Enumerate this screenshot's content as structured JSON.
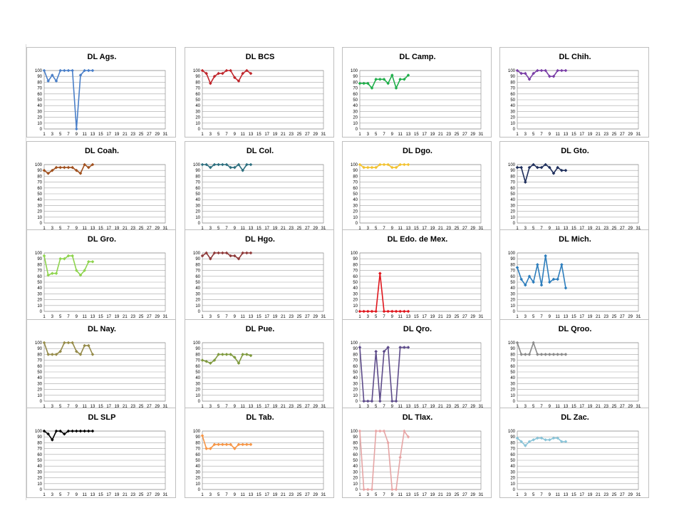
{
  "chart_data": [
    {
      "type": "line",
      "title": "DL Ags.",
      "color": "#4a7fc8",
      "ylim": [
        0,
        100
      ],
      "values": [
        100,
        82,
        92,
        82,
        100,
        100,
        100,
        100,
        0,
        92,
        100,
        100,
        100
      ]
    },
    {
      "type": "line",
      "title": "DL BCS",
      "color": "#c0272d",
      "ylim": [
        0,
        100
      ],
      "values": [
        100,
        95,
        78,
        90,
        95,
        95,
        100,
        100,
        88,
        82,
        95,
        100,
        95
      ]
    },
    {
      "type": "line",
      "title": "DL Camp.",
      "color": "#1fae4a",
      "ylim": [
        0,
        100
      ],
      "values": [
        78,
        78,
        78,
        70,
        85,
        85,
        85,
        78,
        92,
        70,
        85,
        85,
        92
      ]
    },
    {
      "type": "line",
      "title": "DL Chih.",
      "color": "#7a3fa6",
      "ylim": [
        0,
        100
      ],
      "values": [
        100,
        95,
        95,
        85,
        95,
        100,
        100,
        100,
        90,
        90,
        100,
        100,
        100
      ]
    },
    {
      "type": "line",
      "title": "DL Coah.",
      "color": "#a0501e",
      "ylim": [
        0,
        100
      ],
      "values": [
        90,
        85,
        90,
        95,
        95,
        95,
        95,
        95,
        90,
        85,
        100,
        95,
        100
      ]
    },
    {
      "type": "line",
      "title": "DL Col.",
      "color": "#2d6e7e",
      "ylim": [
        0,
        100
      ],
      "values": [
        100,
        100,
        95,
        100,
        100,
        100,
        100,
        95,
        95,
        100,
        90,
        100,
        100
      ]
    },
    {
      "type": "line",
      "title": "DL Dgo.",
      "color": "#f2c230",
      "ylim": [
        0,
        100
      ],
      "values": [
        100,
        95,
        95,
        95,
        95,
        100,
        100,
        100,
        95,
        95,
        100,
        100,
        100
      ]
    },
    {
      "type": "line",
      "title": "DL Gto.",
      "color": "#1f2f5c",
      "ylim": [
        0,
        100
      ],
      "values": [
        95,
        95,
        70,
        95,
        100,
        95,
        95,
        100,
        95,
        85,
        95,
        90,
        90
      ]
    },
    {
      "type": "line",
      "title": "DL Gro.",
      "color": "#8ed44e",
      "ylim": [
        0,
        100
      ],
      "values": [
        95,
        62,
        65,
        65,
        90,
        90,
        95,
        95,
        70,
        62,
        70,
        85,
        85
      ]
    },
    {
      "type": "line",
      "title": "DL Hgo.",
      "color": "#8e3a3a",
      "ylim": [
        0,
        100
      ],
      "values": [
        95,
        100,
        90,
        100,
        100,
        100,
        100,
        95,
        95,
        90,
        100,
        100,
        100
      ]
    },
    {
      "type": "line",
      "title": "DL Edo. de Mex.",
      "color": "#e0161d",
      "ylim": [
        0,
        100
      ],
      "values": [
        0,
        0,
        0,
        0,
        0,
        65,
        0,
        0,
        0,
        0,
        0,
        0,
        0
      ]
    },
    {
      "type": "line",
      "title": "DL Mich.",
      "color": "#2c7dbc",
      "ylim": [
        0,
        100
      ],
      "values": [
        75,
        55,
        45,
        60,
        50,
        80,
        45,
        95,
        50,
        55,
        55,
        80,
        40
      ]
    },
    {
      "type": "line",
      "title": "DL Nay.",
      "color": "#958b4a",
      "ylim": [
        0,
        100
      ],
      "values": [
        100,
        80,
        80,
        80,
        85,
        100,
        100,
        100,
        85,
        80,
        95,
        95,
        80
      ]
    },
    {
      "type": "line",
      "title": "DL Pue.",
      "color": "#7f9a3e",
      "ylim": [
        0,
        100
      ],
      "values": [
        70,
        68,
        65,
        70,
        80,
        80,
        80,
        80,
        75,
        65,
        80,
        80,
        78
      ]
    },
    {
      "type": "line",
      "title": "DL Qro.",
      "color": "#5d4b8a",
      "ylim": [
        0,
        100
      ],
      "values": [
        92,
        0,
        0,
        0,
        85,
        0,
        85,
        92,
        0,
        0,
        92,
        92,
        92
      ]
    },
    {
      "type": "line",
      "title": "DL Qroo.",
      "color": "#8a8a8a",
      "ylim": [
        0,
        100
      ],
      "values": [
        100,
        80,
        80,
        80,
        100,
        80,
        80,
        80,
        80,
        80,
        80,
        80,
        80
      ]
    },
    {
      "type": "line",
      "title": "DL SLP",
      "color": "#000000",
      "ylim": [
        0,
        100
      ],
      "values": [
        100,
        95,
        85,
        100,
        100,
        95,
        100,
        100,
        100,
        100,
        100,
        100,
        100
      ]
    },
    {
      "type": "line",
      "title": "DL Tab.",
      "color": "#f79646",
      "ylim": [
        0,
        100
      ],
      "values": [
        92,
        70,
        70,
        77,
        77,
        77,
        77,
        77,
        70,
        77,
        77,
        77,
        77
      ]
    },
    {
      "type": "line",
      "title": "DL Tlax.",
      "color": "#e6a5a5",
      "ylim": [
        0,
        100
      ],
      "values": [
        100,
        0,
        0,
        0,
        100,
        100,
        100,
        80,
        0,
        0,
        55,
        100,
        90
      ]
    },
    {
      "type": "line",
      "title": "DL Zac.",
      "color": "#8ac4d8",
      "ylim": [
        0,
        100
      ],
      "values": [
        88,
        82,
        75,
        82,
        85,
        88,
        88,
        85,
        85,
        88,
        88,
        82,
        82
      ]
    }
  ],
  "axes": {
    "yticks": [
      "0",
      "10",
      "20",
      "30",
      "40",
      "50",
      "60",
      "70",
      "80",
      "90",
      "100"
    ],
    "xticks": [
      "1",
      "3",
      "5",
      "7",
      "9",
      "11",
      "13",
      "15",
      "17",
      "19",
      "21",
      "23",
      "25",
      "27",
      "29",
      "31"
    ]
  }
}
